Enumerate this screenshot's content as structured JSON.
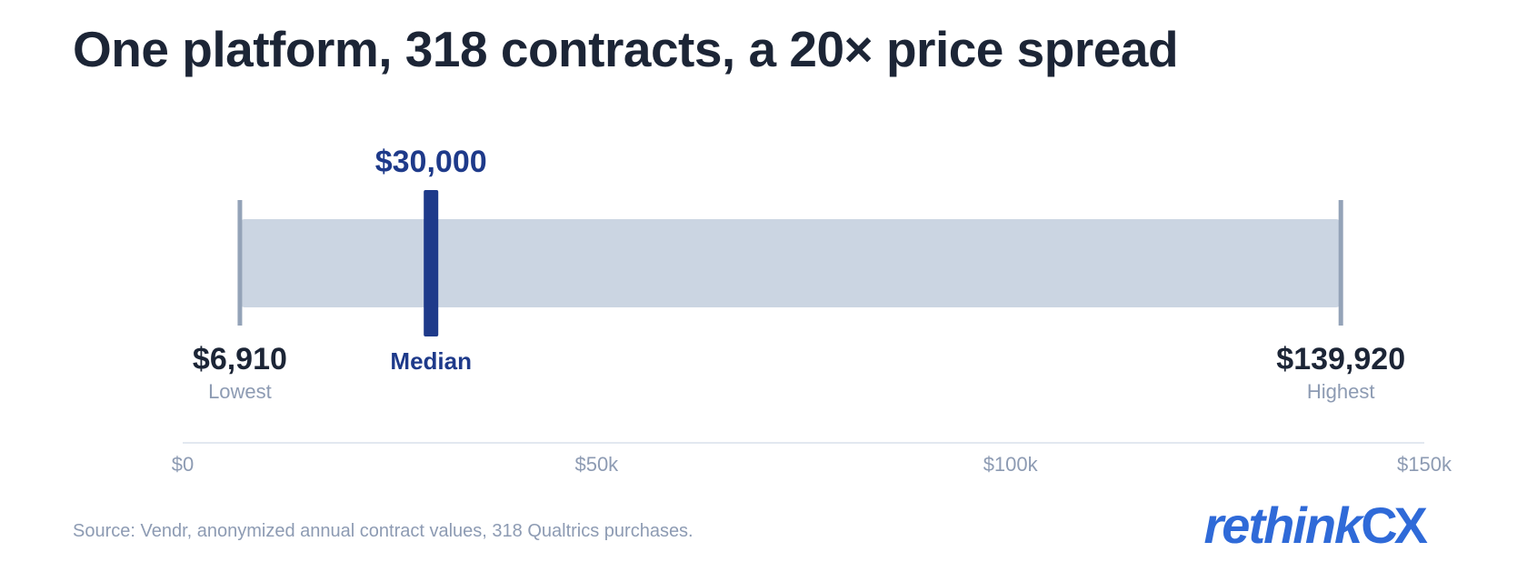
{
  "title": "One platform, 318 contracts, a 20× price spread",
  "source": "Source: Vendr, anonymized annual contract values, 318 Qualtrics purchases.",
  "logo": {
    "part1": "rethink",
    "part2": "CX",
    "color": "#2f6ad8"
  },
  "colors": {
    "range_bar": "#cbd5e2",
    "end_caps": "#94a3b8",
    "median": "#1e3a8a",
    "value_text": "#1c2536",
    "sub_text": "#8d9bb3",
    "axis": "#e2e8f0"
  },
  "chart_data": {
    "type": "range",
    "title": "One platform, 318 contracts, a 20× price spread",
    "xlim": [
      0,
      150000
    ],
    "ticks": [
      {
        "value": 0,
        "label": "$0"
      },
      {
        "value": 50000,
        "label": "$50k"
      },
      {
        "value": 100000,
        "label": "$100k"
      },
      {
        "value": 150000,
        "label": "$150k"
      }
    ],
    "min": {
      "value": 6910,
      "label": "$6,910",
      "caption": "Lowest"
    },
    "median": {
      "value": 30000,
      "label": "$30,000",
      "caption": "Median"
    },
    "max": {
      "value": 139920,
      "label": "$139,920",
      "caption": "Highest"
    }
  }
}
